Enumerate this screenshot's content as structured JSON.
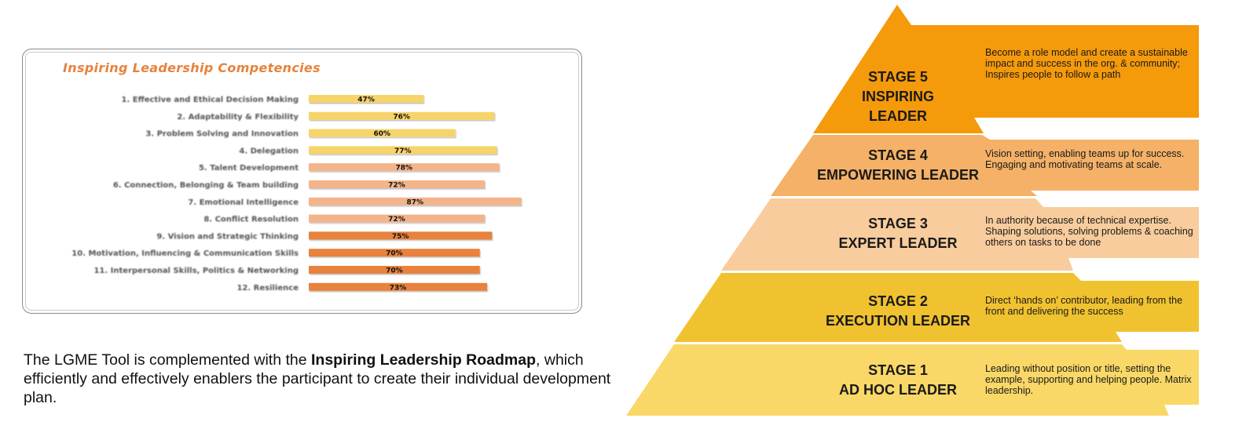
{
  "chart_data": {
    "type": "bar",
    "orientation": "horizontal",
    "title": "Inspiring Leadership Competencies",
    "categories": [
      "1. Effective and Ethical Decision Making",
      "2. Adaptability & Flexibility",
      "3. Problem Solving and Innovation",
      "4. Delegation",
      "5. Talent Development",
      "6. Connection, Belonging & Team building",
      "7. Emotional Intelligence",
      "8. Conflict Resolution",
      "9. Vision and Strategic Thinking",
      "10. Motivation, Influencing & Communication Skills",
      "11. Interpersonal Skills, Politics & Networking",
      "12. Resilience"
    ],
    "values": [
      47,
      76,
      60,
      77,
      78,
      72,
      87,
      72,
      75,
      70,
      70,
      73
    ],
    "value_labels": [
      "47%",
      "76%",
      "60%",
      "77%",
      "78%",
      "72%",
      "87%",
      "72%",
      "75%",
      "70%",
      "70%",
      "73%"
    ],
    "bar_colors": [
      "#f7d46a",
      "#f7d46a",
      "#f7d46a",
      "#f7d46a",
      "#f3b48a",
      "#f3b48a",
      "#f3b48a",
      "#f3b48a",
      "#e8823c",
      "#e8823c",
      "#e8823c",
      "#e8823c"
    ],
    "xlim": [
      0,
      100
    ],
    "grid": false,
    "legend": "none"
  },
  "caption": {
    "part1": "The  LGME Tool  is complemented with the ",
    "bold": "Inspiring Leadership Roadmap",
    "part2": ", which efficiently and effectively enablers the participant to create their individual development plan."
  },
  "pyramid": {
    "stages": [
      {
        "title_lines": [
          "STAGE 5",
          "INSPIRING",
          "LEADER"
        ],
        "description": "Become a role model and create a sustainable impact and success in the org. & community; Inspires people to follow a path",
        "color": "#f59a0b"
      },
      {
        "title_lines": [
          "STAGE 4",
          "EMPOWERING LEADER"
        ],
        "description": "Vision setting, enabling teams up for success. Engaging and motivating teams at scale.",
        "color": "#f4b167"
      },
      {
        "title_lines": [
          "STAGE 3",
          "EXPERT LEADER"
        ],
        "description": "In authority because of technical expertise. Shaping solutions, solving problems & coaching others on tasks to be done",
        "color": "#f8cc9c"
      },
      {
        "title_lines": [
          "STAGE 2",
          "EXECUTION LEADER"
        ],
        "description": "Direct ‘hands on’ contributor, leading from the front and delivering the success",
        "color": "#f0c22f"
      },
      {
        "title_lines": [
          "STAGE 1",
          "AD HOC LEADER"
        ],
        "description": "Leading without position or title, setting the example, supporting and helping people. Matrix leadership.",
        "color": "#f9d867"
      }
    ]
  }
}
